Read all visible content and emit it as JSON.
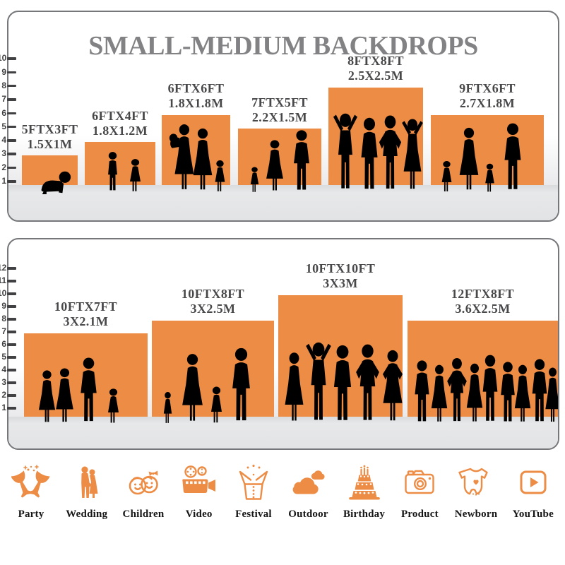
{
  "title": "SMALL-MEDIUM BACKDROPS",
  "colors": {
    "accent": "#ED8C45",
    "title_gray": "#828284",
    "label_gray": "#48484A",
    "floor": "#E3E4E5",
    "border": "#76777A"
  },
  "chart_data": [
    {
      "type": "bar",
      "panel": "top",
      "title": "SMALL-MEDIUM BACKDROPS",
      "categories": [
        "5FTX3FT",
        "6FTX4FT",
        "6FTX6FT",
        "7FTX5FT",
        "8FTX8FT",
        "9FTX6FT"
      ],
      "values": [
        3,
        4,
        6,
        5,
        8,
        6
      ],
      "size_m": [
        "1.5X1M",
        "1.8X1.2M",
        "1.8X1.8M",
        "2.2X1.5M",
        "2.5X2.5M",
        "2.7X1.8M"
      ],
      "width_ft": [
        5,
        6,
        6,
        7,
        8,
        9
      ],
      "y_ticks": [
        1,
        2,
        3,
        4,
        5,
        6,
        7,
        8,
        9,
        10
      ],
      "ylim": [
        0,
        10
      ],
      "grid": false,
      "legend": false,
      "bar_color": "#ED8C45"
    },
    {
      "type": "bar",
      "panel": "bottom",
      "categories": [
        "10FTX7FT",
        "10FTX8FT",
        "10FTX10FT",
        "12FTX8FT"
      ],
      "values": [
        7,
        8,
        10,
        8
      ],
      "size_m": [
        "3X2.1M",
        "3X2.5M",
        "3X3M",
        "3.6X2.5M"
      ],
      "width_ft": [
        10,
        10,
        10,
        12
      ],
      "y_ticks": [
        1,
        2,
        3,
        4,
        5,
        6,
        7,
        8,
        9,
        10,
        11,
        12
      ],
      "ylim": [
        0,
        12
      ],
      "grid": false,
      "legend": false,
      "bar_color": "#ED8C45"
    }
  ],
  "categories_row": [
    {
      "label": "Party",
      "icon": "party-icon"
    },
    {
      "label": "Wedding",
      "icon": "wedding-icon"
    },
    {
      "label": "Children",
      "icon": "children-icon"
    },
    {
      "label": "Video",
      "icon": "video-icon"
    },
    {
      "label": "Festival",
      "icon": "festival-icon"
    },
    {
      "label": "Outdoor",
      "icon": "outdoor-icon"
    },
    {
      "label": "Birthday",
      "icon": "birthday-icon"
    },
    {
      "label": "Product",
      "icon": "product-icon"
    },
    {
      "label": "Newborn",
      "icon": "newborn-icon"
    },
    {
      "label": "YouTube",
      "icon": "youtube-icon"
    }
  ]
}
